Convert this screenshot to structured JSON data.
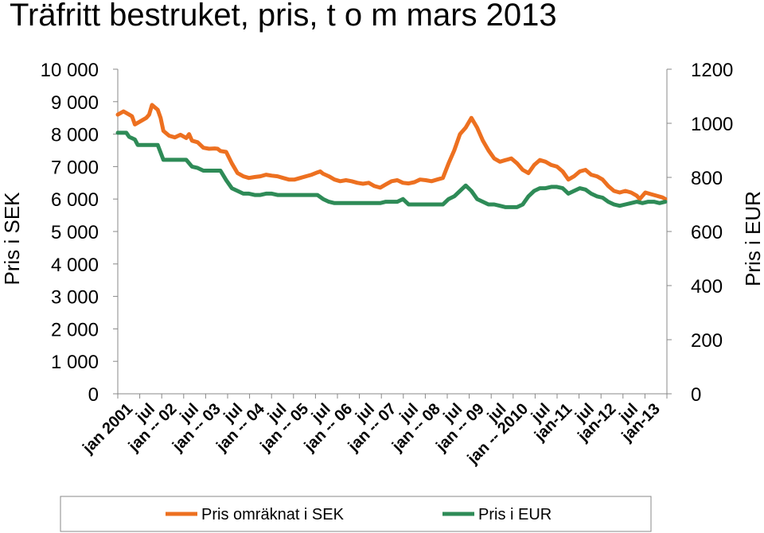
{
  "chart_data": {
    "type": "line",
    "title": "Träfritt bestruket, pris, t o m mars 2013",
    "ylabel": "Pris i SEK",
    "y2label": "Pris i EUR",
    "ylim": [
      0,
      10000
    ],
    "y2lim": [
      0,
      1200
    ],
    "y_ticks": [
      "0",
      "1 000",
      "2 000",
      "3 000",
      "4 000",
      "5 000",
      "6 000",
      "7 000",
      "8 000",
      "9 000",
      "10 000"
    ],
    "y2_ticks": [
      "0",
      "200",
      "400",
      "600",
      "800",
      "1000",
      "1200"
    ],
    "x_tick_labels": [
      "jan 2001",
      "jul",
      "jan -- 02",
      "jul",
      "jan -- 03",
      "jul",
      "jan -- 04",
      "jul",
      "jan -- 05",
      "jul",
      "jan -- 06",
      "jul",
      "jan -- 07",
      "jul",
      "jan -- 08",
      "jul",
      "jan -- 09",
      "jul",
      "jan -- 2010",
      "jul",
      "jan-11",
      "jul",
      "jan-12",
      "jul",
      "jan-13"
    ],
    "x_months": 147,
    "legend_position": "bottom",
    "grid": false,
    "series": [
      {
        "name": "Pris omräknat i SEK",
        "axis": "left",
        "color": "#ED7020",
        "points": [
          [
            0,
            8600
          ],
          [
            2,
            8700
          ],
          [
            4,
            8600
          ],
          [
            5,
            8550
          ],
          [
            6,
            8300
          ],
          [
            8,
            8400
          ],
          [
            10,
            8500
          ],
          [
            11,
            8600
          ],
          [
            12,
            8900
          ],
          [
            14,
            8750
          ],
          [
            15,
            8500
          ],
          [
            16,
            8100
          ],
          [
            18,
            7950
          ],
          [
            20,
            7900
          ],
          [
            22,
            7980
          ],
          [
            24,
            7880
          ],
          [
            25,
            8000
          ],
          [
            26,
            7800
          ],
          [
            28,
            7750
          ],
          [
            30,
            7580
          ],
          [
            32,
            7550
          ],
          [
            34,
            7560
          ],
          [
            35,
            7550
          ],
          [
            36,
            7480
          ],
          [
            38,
            7450
          ],
          [
            40,
            7100
          ],
          [
            42,
            6800
          ],
          [
            44,
            6700
          ],
          [
            46,
            6650
          ],
          [
            48,
            6680
          ],
          [
            50,
            6700
          ],
          [
            52,
            6750
          ],
          [
            54,
            6720
          ],
          [
            56,
            6700
          ],
          [
            58,
            6650
          ],
          [
            60,
            6600
          ],
          [
            62,
            6600
          ],
          [
            64,
            6650
          ],
          [
            66,
            6700
          ],
          [
            68,
            6750
          ],
          [
            70,
            6820
          ],
          [
            71,
            6850
          ],
          [
            72,
            6780
          ],
          [
            74,
            6700
          ],
          [
            76,
            6600
          ],
          [
            78,
            6550
          ],
          [
            80,
            6580
          ],
          [
            82,
            6550
          ],
          [
            84,
            6500
          ],
          [
            86,
            6470
          ],
          [
            88,
            6500
          ],
          [
            90,
            6400
          ],
          [
            92,
            6350
          ],
          [
            94,
            6450
          ],
          [
            96,
            6550
          ],
          [
            98,
            6580
          ],
          [
            100,
            6500
          ],
          [
            102,
            6480
          ],
          [
            104,
            6520
          ],
          [
            106,
            6600
          ],
          [
            108,
            6580
          ],
          [
            110,
            6550
          ],
          [
            112,
            6600
          ],
          [
            114,
            6650
          ],
          [
            116,
            7100
          ],
          [
            118,
            7500
          ],
          [
            120,
            8000
          ],
          [
            122,
            8200
          ],
          [
            124,
            8500
          ],
          [
            126,
            8200
          ],
          [
            128,
            7800
          ],
          [
            130,
            7500
          ],
          [
            132,
            7250
          ],
          [
            134,
            7150
          ],
          [
            136,
            7200
          ],
          [
            138,
            7250
          ],
          [
            140,
            7100
          ],
          [
            142,
            6900
          ],
          [
            144,
            6800
          ],
          [
            146,
            7050
          ],
          [
            148,
            7200
          ],
          [
            150,
            7150
          ],
          [
            152,
            7050
          ],
          [
            154,
            7000
          ],
          [
            156,
            6850
          ],
          [
            158,
            6600
          ],
          [
            160,
            6700
          ],
          [
            162,
            6850
          ],
          [
            164,
            6900
          ],
          [
            166,
            6750
          ],
          [
            168,
            6700
          ],
          [
            170,
            6600
          ],
          [
            172,
            6400
          ],
          [
            174,
            6250
          ],
          [
            176,
            6200
          ],
          [
            178,
            6250
          ],
          [
            180,
            6200
          ],
          [
            182,
            6100
          ],
          [
            183,
            6000
          ],
          [
            185,
            6200
          ],
          [
            187,
            6150
          ],
          [
            189,
            6100
          ],
          [
            191,
            6050
          ],
          [
            192,
            6000
          ]
        ]
      },
      {
        "name": "Pris i EUR",
        "axis": "right",
        "color": "#2E8B57",
        "points": [
          [
            0,
            965
          ],
          [
            3,
            965
          ],
          [
            4,
            950
          ],
          [
            6,
            940
          ],
          [
            7,
            920
          ],
          [
            14,
            920
          ],
          [
            16,
            865
          ],
          [
            24,
            865
          ],
          [
            26,
            840
          ],
          [
            28,
            835
          ],
          [
            30,
            825
          ],
          [
            36,
            825
          ],
          [
            38,
            790
          ],
          [
            40,
            760
          ],
          [
            44,
            740
          ],
          [
            46,
            740
          ],
          [
            48,
            735
          ],
          [
            50,
            735
          ],
          [
            52,
            740
          ],
          [
            54,
            740
          ],
          [
            56,
            735
          ],
          [
            70,
            735
          ],
          [
            72,
            720
          ],
          [
            74,
            710
          ],
          [
            76,
            705
          ],
          [
            90,
            705
          ],
          [
            92,
            705
          ],
          [
            94,
            710
          ],
          [
            98,
            710
          ],
          [
            100,
            720
          ],
          [
            102,
            700
          ],
          [
            114,
            700
          ],
          [
            116,
            720
          ],
          [
            118,
            730
          ],
          [
            120,
            750
          ],
          [
            122,
            770
          ],
          [
            124,
            750
          ],
          [
            126,
            720
          ],
          [
            128,
            710
          ],
          [
            130,
            700
          ],
          [
            132,
            700
          ],
          [
            134,
            695
          ],
          [
            136,
            690
          ],
          [
            138,
            690
          ],
          [
            140,
            690
          ],
          [
            142,
            700
          ],
          [
            144,
            730
          ],
          [
            146,
            750
          ],
          [
            148,
            760
          ],
          [
            150,
            760
          ],
          [
            152,
            765
          ],
          [
            154,
            765
          ],
          [
            156,
            760
          ],
          [
            158,
            740
          ],
          [
            160,
            750
          ],
          [
            162,
            760
          ],
          [
            164,
            755
          ],
          [
            166,
            740
          ],
          [
            168,
            730
          ],
          [
            170,
            725
          ],
          [
            172,
            710
          ],
          [
            174,
            700
          ],
          [
            176,
            695
          ],
          [
            178,
            700
          ],
          [
            180,
            705
          ],
          [
            182,
            710
          ],
          [
            184,
            705
          ],
          [
            186,
            710
          ],
          [
            188,
            710
          ],
          [
            190,
            705
          ],
          [
            192,
            710
          ]
        ]
      }
    ]
  }
}
